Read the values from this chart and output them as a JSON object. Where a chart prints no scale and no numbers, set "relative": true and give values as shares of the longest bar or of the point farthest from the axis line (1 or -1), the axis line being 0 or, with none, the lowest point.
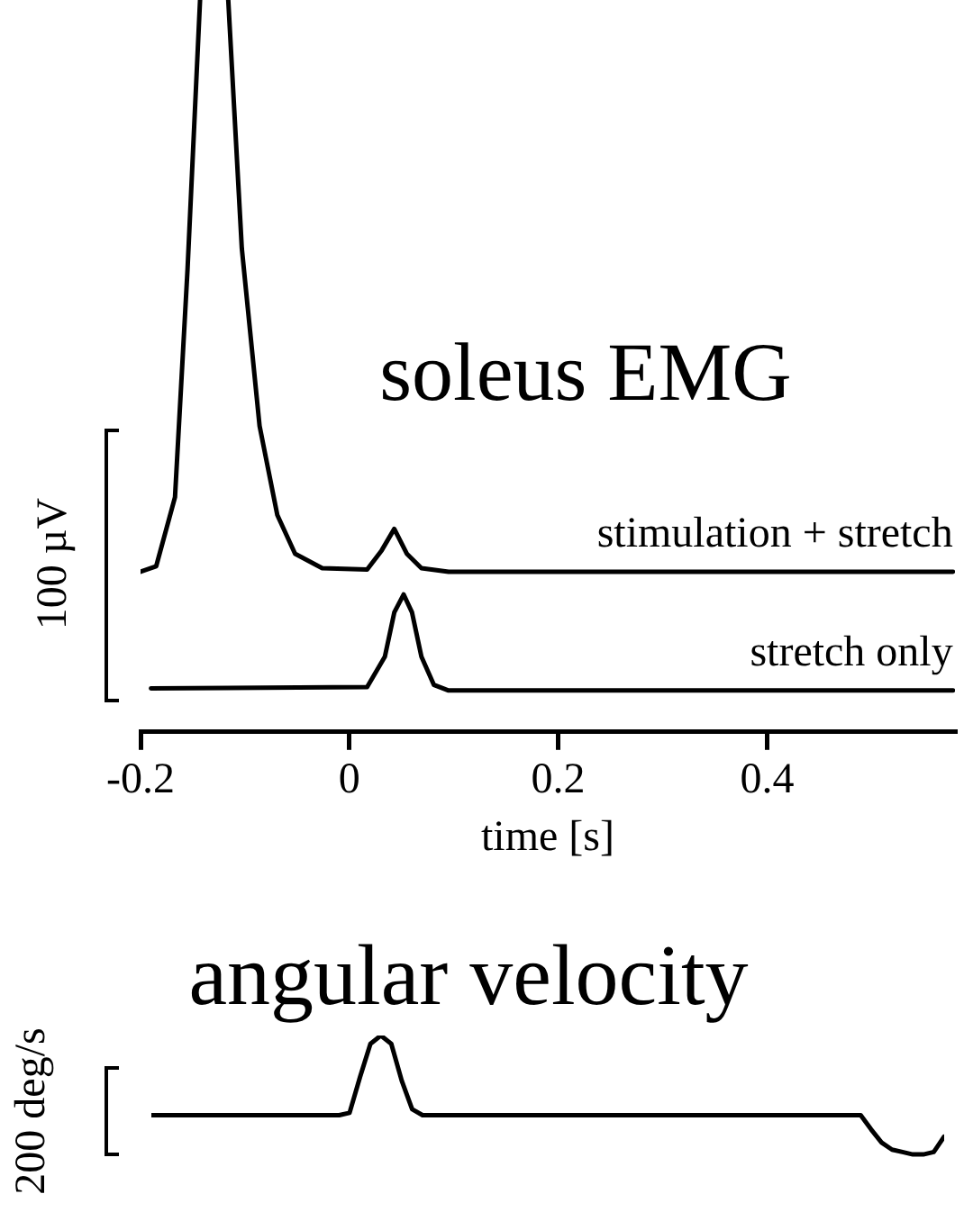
{
  "chart_data": [
    {
      "type": "line",
      "title": "soleus EMG",
      "xlabel": "time [s]",
      "ylabel": "100 µV",
      "relative": true,
      "xlim": [
        -0.2,
        0.58
      ],
      "xticks": [
        -0.2,
        0,
        0.2,
        0.4
      ],
      "x": [
        -0.2,
        -0.185,
        -0.167,
        -0.155,
        -0.143,
        -0.13,
        -0.116,
        -0.103,
        -0.086,
        -0.069,
        -0.052,
        -0.026,
        0.017,
        0.031,
        0.043,
        0.055,
        0.069,
        0.095,
        0.578
      ],
      "series": [
        {
          "name": "stimulation + stretch",
          "color": "#000000",
          "values": [
            0.172,
            0.18,
            0.28,
            0.61,
            1,
            null,
            1,
            0.64,
            0.383,
            0.254,
            0.198,
            0.177,
            0.175,
            0.203,
            0.234,
            0.198,
            0.177,
            0.172,
            0.172
          ]
        },
        {
          "name": "stretch only",
          "color": "#000000",
          "x": [
            -0.19,
            0.017,
            0.034,
            0.043,
            0.052,
            0.06,
            0.069,
            0.081,
            0.095,
            0.578
          ],
          "values": [
            0.003,
            0.005,
            0.049,
            0.113,
            0.139,
            0.113,
            0.049,
            0.008,
            0,
            0
          ]
        }
      ]
    },
    {
      "type": "line",
      "title": "angular velocity",
      "ylabel": "200 deg/s",
      "relative": true,
      "tick_labels": false,
      "categories": [
        null,
        null,
        null,
        null,
        null,
        null,
        null,
        null,
        null,
        null,
        null,
        null,
        null,
        null,
        null,
        null,
        null,
        null,
        null,
        null,
        null,
        null,
        null,
        null,
        null,
        null,
        null,
        null,
        null,
        null,
        null,
        null,
        null,
        null,
        null,
        null,
        null,
        null,
        null,
        null,
        null,
        null,
        null,
        null,
        null,
        null,
        null,
        null,
        null,
        null,
        null,
        null,
        null,
        null,
        null,
        null,
        null,
        null,
        null,
        null,
        null,
        null,
        null,
        null,
        null,
        null,
        null,
        null,
        null,
        null,
        null,
        null,
        null,
        null,
        null,
        null,
        null
      ],
      "series": [
        {
          "color": "#000000",
          "values": [
            0.33,
            0.33,
            0.33,
            0.33,
            0.33,
            0.33,
            0.33,
            0.33,
            0.33,
            0.33,
            0.33,
            0.33,
            0.33,
            0.33,
            0.33,
            0.33,
            0.33,
            0.33,
            0.33,
            0.35,
            0.65,
            0.93,
            1,
            0.93,
            0.62,
            0.38,
            0.33,
            0.33,
            0.33,
            0.33,
            0.33,
            0.33,
            0.33,
            0.33,
            0.33,
            0.33,
            0.33,
            0.33,
            0.33,
            0.33,
            0.33,
            0.33,
            0.33,
            0.33,
            0.33,
            0.33,
            0.33,
            0.33,
            0.33,
            0.33,
            0.33,
            0.33,
            0.33,
            0.33,
            0.33,
            0.33,
            0.33,
            0.33,
            0.33,
            0.33,
            0.33,
            0.33,
            0.33,
            0.33,
            0.33,
            0.33,
            0.33,
            0.33,
            0.33,
            0.21,
            0.1,
            0.04,
            0.02,
            0,
            0,
            0.02,
            0.15
          ]
        }
      ]
    }
  ]
}
